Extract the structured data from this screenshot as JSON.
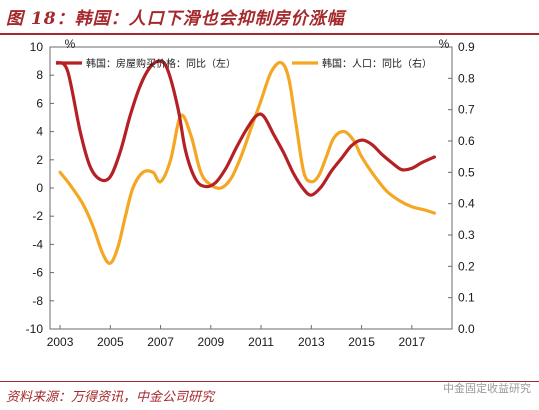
{
  "title": "图 18：韩国：人口下滑也会抑制房价涨幅",
  "source": "资料来源：万得资讯，中金公司研究",
  "watermark": "中金固定收益研究",
  "chart_data": {
    "type": "line",
    "left_unit": "%",
    "right_unit": "%",
    "ylim_left": [
      -10,
      10
    ],
    "ylim_right": [
      0.0,
      0.9
    ],
    "left_ticks": [
      "10",
      "8",
      "6",
      "4",
      "2",
      "0",
      "-2",
      "-4",
      "-6",
      "-8",
      "-10"
    ],
    "right_ticks": [
      "0.9",
      "0.8",
      "0.7",
      "0.6",
      "0.5",
      "0.4",
      "0.3",
      "0.2",
      "0.1",
      "0.0"
    ],
    "x_ticks": [
      "2003",
      "2005",
      "2007",
      "2009",
      "2011",
      "2013",
      "2015",
      "2017"
    ],
    "series": [
      {
        "name": "韩国：房屋购买价格：同比（左）",
        "axis": "left",
        "color": "#b52025",
        "x": [
          2002.9,
          2003.3,
          2003.8,
          2004.2,
          2004.6,
          2005.0,
          2005.4,
          2005.8,
          2006.2,
          2006.6,
          2007.0,
          2007.3,
          2007.7,
          2008.0,
          2008.4,
          2008.8,
          2009.2,
          2009.6,
          2010.0,
          2010.4,
          2010.8,
          2011.1,
          2011.5,
          2011.9,
          2012.3,
          2012.7,
          2013.0,
          2013.4,
          2013.8,
          2014.2,
          2014.6,
          2015.0,
          2015.4,
          2015.8,
          2016.2,
          2016.6,
          2017.0,
          2017.4,
          2017.9
        ],
        "y": [
          8.9,
          8.3,
          4.0,
          1.5,
          0.6,
          0.8,
          2.6,
          5.2,
          7.3,
          8.6,
          9.0,
          8.3,
          5.6,
          2.6,
          0.6,
          0.1,
          0.4,
          1.4,
          2.8,
          4.1,
          5.1,
          5.1,
          3.8,
          2.5,
          1.0,
          -0.1,
          -0.5,
          0.1,
          1.2,
          2.1,
          3.0,
          3.4,
          3.1,
          2.4,
          1.8,
          1.3,
          1.4,
          1.8,
          2.2
        ]
      },
      {
        "name": "韩国：人口：同比（右）",
        "axis": "right",
        "color": "#f5a623",
        "x": [
          2003.0,
          2003.4,
          2003.9,
          2004.3,
          2004.7,
          2005.0,
          2005.3,
          2005.6,
          2005.9,
          2006.3,
          2006.7,
          2007.0,
          2007.4,
          2007.8,
          2008.2,
          2008.6,
          2009.0,
          2009.4,
          2009.8,
          2010.2,
          2010.6,
          2011.0,
          2011.4,
          2011.8,
          2012.1,
          2012.4,
          2012.7,
          2013.0,
          2013.3,
          2013.6,
          2013.9,
          2014.3,
          2014.7,
          2015.0,
          2015.5,
          2016.0,
          2016.5,
          2017.0,
          2017.5,
          2017.9
        ],
        "y": [
          0.5,
          0.46,
          0.4,
          0.33,
          0.24,
          0.21,
          0.26,
          0.36,
          0.45,
          0.5,
          0.5,
          0.47,
          0.54,
          0.68,
          0.62,
          0.5,
          0.46,
          0.45,
          0.48,
          0.55,
          0.64,
          0.73,
          0.82,
          0.85,
          0.8,
          0.65,
          0.5,
          0.47,
          0.49,
          0.55,
          0.61,
          0.63,
          0.6,
          0.55,
          0.49,
          0.44,
          0.41,
          0.39,
          0.38,
          0.37
        ]
      }
    ]
  }
}
